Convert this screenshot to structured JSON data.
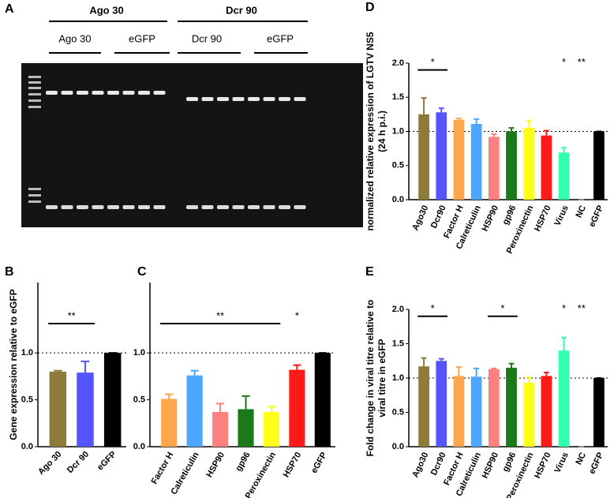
{
  "gel": {
    "label": "A",
    "groups": [
      {
        "name": "Ago 30",
        "lanes": [
          "Ago 30",
          "eGFP"
        ]
      },
      {
        "name": "Dcr 90",
        "lanes": [
          "Dcr 90",
          "eGFP"
        ]
      }
    ]
  },
  "chart_data": [
    {
      "type": "bar",
      "label": "B",
      "y_label": "Gene expression relative to eGFP",
      "categories": [
        "Ago 30",
        "Dcr 90",
        "eGFP"
      ],
      "values": [
        0.8,
        0.79,
        1.0
      ],
      "errors": [
        0.01,
        0.12,
        0
      ],
      "colors": [
        "#8c7b3a",
        "#5555ff",
        "#000000"
      ],
      "ylim": [
        0,
        1.75
      ],
      "yticks": [
        {
          "value": 0,
          "label": "0.0"
        },
        {
          "value": 0.5,
          "label": "0.5"
        },
        {
          "value": 1,
          "label": "1.0"
        }
      ],
      "reference_line": 1,
      "annotations": [
        {
          "text": "**",
          "span": [
            0,
            1
          ]
        }
      ]
    },
    {
      "type": "bar",
      "label": "C",
      "categories": [
        "Factor H",
        "Calreticulin",
        "HSP90",
        "gp96",
        "Peroxinectin",
        "HSP70",
        "eGFP"
      ],
      "values": [
        0.51,
        0.76,
        0.37,
        0.4,
        0.37,
        0.82,
        1.0
      ],
      "errors": [
        0.05,
        0.05,
        0.09,
        0.14,
        0.06,
        0.05,
        0
      ],
      "colors": [
        "#ffa64d",
        "#4da6ff",
        "#ff8080",
        "#1a7a1a",
        "#ffff1a",
        "#ff1a1a",
        "#000000"
      ],
      "ylim": [
        0,
        1.75
      ],
      "yticks": [
        {
          "value": 0,
          "label": "0.0"
        },
        {
          "value": 0.5,
          "label": "0.5"
        },
        {
          "value": 1,
          "label": "1.0"
        }
      ],
      "reference_line": 1,
      "annotations": [
        {
          "text": "**",
          "span": [
            0,
            4
          ]
        },
        {
          "text": "*",
          "span": [
            5
          ]
        }
      ]
    },
    {
      "type": "bar",
      "label": "D",
      "y_label": [
        "normalized relative expression of LGTV NS5",
        "(24 h p.i.)"
      ],
      "categories": [
        "Ago30",
        "Dcr90",
        "Factor H",
        "Calreticulin",
        "HSP90",
        "gp96",
        "Peroxinectin",
        "HSP70",
        "Virus",
        "NC",
        "eGFP"
      ],
      "values": [
        1.25,
        1.28,
        1.17,
        1.11,
        0.92,
        1.0,
        1.05,
        0.94,
        0.69,
        0,
        1.0
      ],
      "errors": [
        0.24,
        0.06,
        0.02,
        0.07,
        0.04,
        0.05,
        0.11,
        0.07,
        0.07,
        0,
        0
      ],
      "colors": [
        "#8c7b3a",
        "#5555ff",
        "#ffa64d",
        "#4da6ff",
        "#ff8080",
        "#1a7a1a",
        "#ffff1a",
        "#ff1a1a",
        "#33ffb0",
        "#888888",
        "#000000"
      ],
      "ylim": [
        0,
        2
      ],
      "yticks": [
        {
          "value": 0,
          "label": "0.0"
        },
        {
          "value": 0.5,
          "label": "0.5"
        },
        {
          "value": 1,
          "label": "1.0"
        },
        {
          "value": 1.5,
          "label": "1.5"
        },
        {
          "value": 2,
          "label": "2.0"
        }
      ],
      "reference_line": 1,
      "annotations": [
        {
          "text": "*",
          "span": [
            0,
            1
          ]
        },
        {
          "text": "*",
          "span": [
            8
          ]
        },
        {
          "text": "**",
          "span": [
            9
          ]
        }
      ]
    },
    {
      "type": "bar",
      "label": "E",
      "y_label": [
        "Fold change in viral titre relative to",
        "viral titre in eGFP"
      ],
      "categories": [
        "Ago30",
        "Dcr90",
        "Factor H",
        "Calreticulin",
        "HSP90",
        "gp96",
        "Peroxinectin",
        "HSP70",
        "Virus",
        "NC",
        "eGFP"
      ],
      "values": [
        1.17,
        1.25,
        1.03,
        1.02,
        1.13,
        1.15,
        0.93,
        1.03,
        1.4,
        0,
        1.0
      ],
      "errors": [
        0.12,
        0.03,
        0.13,
        0.12,
        0.01,
        0.06,
        0.08,
        0.05,
        0.19,
        0,
        0
      ],
      "colors": [
        "#8c7b3a",
        "#5555ff",
        "#ffa64d",
        "#4da6ff",
        "#ff8080",
        "#1a7a1a",
        "#ffff1a",
        "#ff1a1a",
        "#33ffb0",
        "#888888",
        "#000000"
      ],
      "ylim": [
        0,
        2
      ],
      "yticks": [
        {
          "value": 0,
          "label": "0.0"
        },
        {
          "value": 0.5,
          "label": "0.5"
        },
        {
          "value": 1,
          "label": "1.0"
        },
        {
          "value": 1.5,
          "label": "1.5"
        },
        {
          "value": 2,
          "label": "2.0"
        }
      ],
      "reference_line": 1,
      "annotations": [
        {
          "text": "*",
          "span": [
            0,
            1
          ]
        },
        {
          "text": "*",
          "span": [
            4,
            5
          ]
        },
        {
          "text": "*",
          "span": [
            8
          ]
        },
        {
          "text": "**",
          "span": [
            9
          ]
        }
      ]
    }
  ]
}
